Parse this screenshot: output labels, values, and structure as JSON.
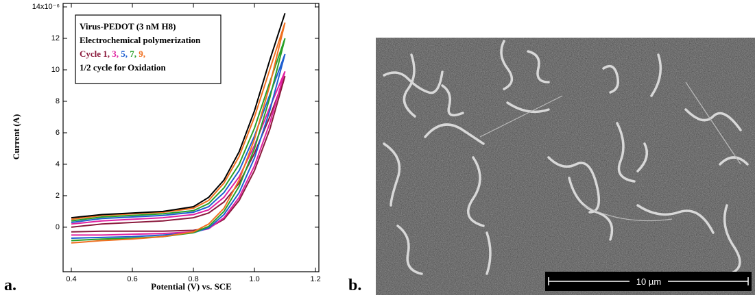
{
  "chart_data": {
    "type": "line",
    "x_label": "Potential (V) vs. SCE",
    "y_label": "Current (A)",
    "annotation": [
      "Virus-PEDOT (3 nM H8)",
      "Electrochemical polymerization"
    ],
    "legend_prefix": "Cycle",
    "x": [
      0.4,
      0.5,
      0.6,
      0.7,
      0.8,
      0.85,
      0.9,
      0.95,
      1.0,
      1.05,
      1.1,
      1.05,
      1.0,
      0.95,
      0.9,
      0.85,
      0.8,
      0.7,
      0.6,
      0.5,
      0.4
    ],
    "series": [
      {
        "name": "1,",
        "color": "#8b1a3c",
        "values": [
          0.0,
          0.2,
          0.3,
          0.4,
          0.6,
          0.9,
          1.6,
          2.8,
          4.7,
          7.0,
          9.6,
          6.2,
          3.6,
          1.7,
          0.5,
          -0.05,
          -0.2,
          -0.25,
          -0.25,
          -0.25,
          -0.3
        ]
      },
      {
        "name": "3,",
        "color": "#e020a0",
        "values": [
          0.2,
          0.4,
          0.5,
          0.6,
          0.8,
          1.1,
          1.9,
          3.2,
          5.2,
          7.6,
          9.9,
          6.6,
          3.9,
          1.9,
          0.6,
          -0.1,
          -0.3,
          -0.4,
          -0.45,
          -0.5,
          -0.5
        ]
      },
      {
        "name": "5,",
        "color": "#1f5fd0",
        "values": [
          0.3,
          0.55,
          0.65,
          0.75,
          0.95,
          1.3,
          2.2,
          3.6,
          5.8,
          8.4,
          11.0,
          7.4,
          4.4,
          2.2,
          0.8,
          -0.05,
          -0.35,
          -0.5,
          -0.6,
          -0.65,
          -0.7
        ]
      },
      {
        "name": "7,",
        "color": "#28a028",
        "values": [
          0.4,
          0.65,
          0.75,
          0.85,
          1.05,
          1.5,
          2.5,
          4.0,
          6.3,
          9.2,
          12.0,
          8.2,
          5.0,
          2.6,
          1.0,
          0.05,
          -0.35,
          -0.6,
          -0.7,
          -0.75,
          -0.85
        ]
      },
      {
        "name": "9,",
        "color": "#f07020",
        "values": [
          0.5,
          0.75,
          0.85,
          0.95,
          1.2,
          1.7,
          2.8,
          4.5,
          7.0,
          10.0,
          13.0,
          9.0,
          5.6,
          3.0,
          1.2,
          0.2,
          -0.3,
          -0.6,
          -0.75,
          -0.85,
          -1.0
        ]
      },
      {
        "name": "1/2 cycle for Oxidation",
        "color": "#000000",
        "values": [
          0.6,
          0.8,
          0.9,
          1.0,
          1.3,
          1.9,
          3.0,
          4.8,
          7.4,
          10.6,
          13.6,
          null,
          null,
          null,
          null,
          null,
          null,
          null,
          null,
          null,
          null
        ]
      }
    ],
    "xlim": [
      0.373,
      1.211
    ],
    "ylim": [
      -2.83,
      14.22
    ],
    "xticks": [
      0.4,
      0.6,
      0.8,
      {
        "value": 1,
        "label": "1.0"
      },
      1.2
    ],
    "yticks": [
      0,
      2,
      4,
      6,
      8,
      10,
      12,
      {
        "value": 14,
        "label": "14x10⁻⁶"
      }
    ]
  },
  "panel_labels": [
    "a.",
    "b."
  ],
  "image": {
    "scale_bar": "10 µm"
  }
}
